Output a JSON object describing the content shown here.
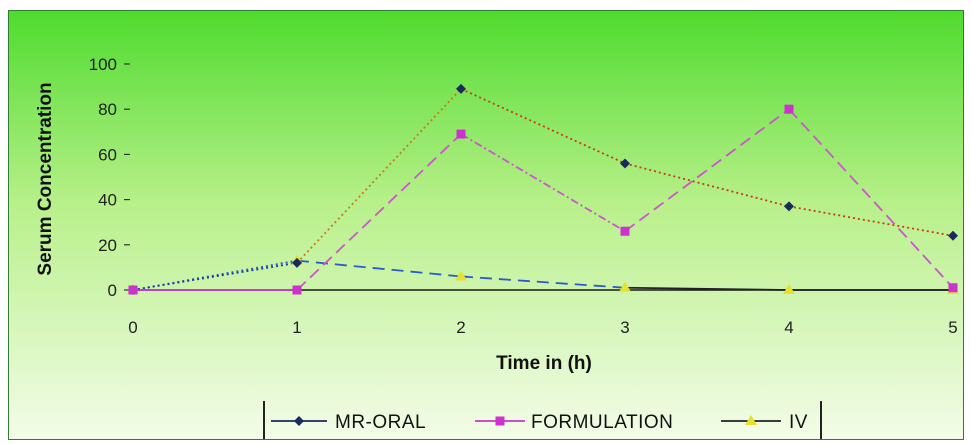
{
  "chart_data": {
    "type": "line",
    "xlabel": "Time in (h)",
    "ylabel": "Serum Concentration",
    "x": [
      0,
      1,
      2,
      3,
      4,
      5
    ],
    "x_tick_labels": [
      "0",
      "1",
      "2",
      "3",
      "4",
      "5"
    ],
    "y_tick_labels": [
      "0",
      "20",
      "40",
      "60",
      "80",
      "100"
    ],
    "xlim": [
      0,
      5
    ],
    "ylim": [
      0,
      100
    ],
    "grid": false,
    "legend_position": "bottom",
    "series": [
      {
        "name": "MR-ORAL",
        "values": [
          0,
          12,
          89,
          56,
          37,
          24
        ],
        "color": "#1a2a5e",
        "marker": "diamond"
      },
      {
        "name": "FORMULATION",
        "values": [
          0,
          0,
          69,
          26,
          80,
          1
        ],
        "color": "#cc33cc",
        "marker": "square"
      },
      {
        "name": "IV",
        "values": [
          0,
          13,
          6,
          1,
          0,
          0
        ],
        "color": "#e8e030",
        "marker": "triangle"
      }
    ],
    "background_gradient": [
      "#4fdb2e",
      "#f3fce8"
    ]
  }
}
